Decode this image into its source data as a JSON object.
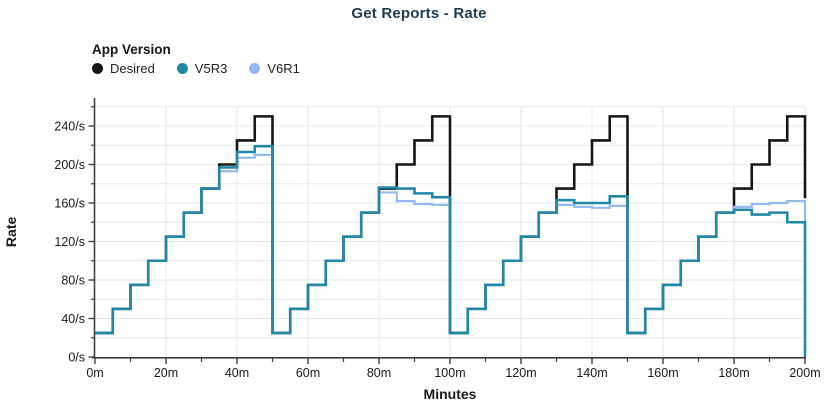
{
  "page": {
    "title": "Get Reports - Rate"
  },
  "legend": {
    "title": "App Version",
    "items": [
      {
        "label": "Desired",
        "color": "#161616"
      },
      {
        "label": "V5R3",
        "color": "#2189a7"
      },
      {
        "label": "V6R1",
        "color": "#97b9f2"
      }
    ]
  },
  "colors": {
    "title": "#1d3c52",
    "grid": "#e7e7e7",
    "axis": "#3f3f3f",
    "tick_text": "#1a1a1a",
    "desired": "#161616",
    "v5r3": "#2189a7",
    "v6r1": "#97b9f2"
  },
  "chart_data": {
    "type": "line",
    "subtype": "step-after",
    "title": "Get Reports - Rate",
    "xlabel": "Minutes",
    "ylabel": "Rate",
    "x_unit_suffix": "m",
    "y_unit_suffix": "/s",
    "xlim": [
      0,
      200
    ],
    "ylim": [
      0,
      260
    ],
    "x_major_ticks": [
      0,
      20,
      40,
      60,
      80,
      100,
      120,
      140,
      160,
      180,
      200
    ],
    "x_minor_ticks": [
      10,
      30,
      50,
      70,
      90,
      110,
      130,
      150,
      170,
      190
    ],
    "y_major_ticks": [
      0,
      40,
      80,
      120,
      160,
      200,
      240
    ],
    "y_minor_ticks": [
      20,
      60,
      100,
      140,
      180,
      220,
      260
    ],
    "grid_step_x": 20,
    "grid_step_y": 20,
    "legend_title": "App Version",
    "legend_position": "top-left",
    "grid": true,
    "step_minutes": 5,
    "x_end": 200,
    "note": "Sawtooth load pattern repeating every 50m; steps of +25/s every 5m. Values are per 5-minute bin starting at t=0. end_drop = value the final vertical at x=200m drops to.",
    "series": [
      {
        "name": "Desired",
        "color": "#161616",
        "values": [
          25,
          50,
          75,
          100,
          125,
          150,
          175,
          200,
          225,
          250,
          25,
          50,
          75,
          100,
          125,
          150,
          175,
          200,
          225,
          250,
          25,
          50,
          75,
          100,
          125,
          150,
          175,
          200,
          225,
          250,
          25,
          50,
          75,
          100,
          125,
          150,
          175,
          200,
          225,
          250
        ],
        "end_drop": 165
      },
      {
        "name": "V6R1",
        "color": "#97b9f2",
        "values": [
          25,
          50,
          75,
          100,
          125,
          150,
          175,
          193,
          207,
          210,
          25,
          50,
          75,
          100,
          125,
          150,
          171,
          162,
          159,
          158,
          25,
          50,
          75,
          100,
          125,
          150,
          158,
          156,
          155,
          157,
          25,
          50,
          75,
          100,
          125,
          150,
          156,
          159,
          160,
          162
        ],
        "end_drop": 140
      },
      {
        "name": "V5R3",
        "color": "#2189a7",
        "values": [
          25,
          50,
          75,
          100,
          125,
          150,
          175,
          197,
          213,
          219,
          25,
          50,
          75,
          100,
          125,
          150,
          176,
          175,
          170,
          166,
          25,
          50,
          75,
          100,
          125,
          150,
          163,
          160,
          160,
          167,
          25,
          50,
          75,
          100,
          125,
          150,
          153,
          148,
          150,
          140
        ],
        "end_drop": 0
      }
    ]
  }
}
